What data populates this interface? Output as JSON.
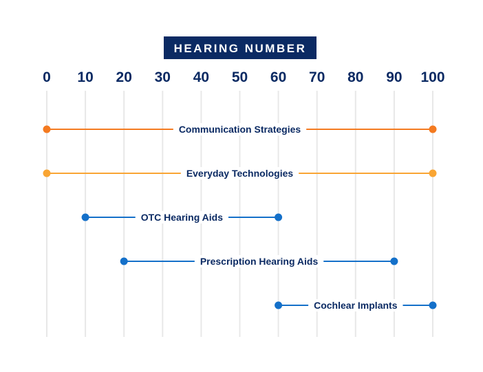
{
  "chart_data": {
    "type": "range",
    "title": "HEARING NUMBER",
    "xlim": [
      0,
      100
    ],
    "ticks": [
      0,
      10,
      20,
      30,
      40,
      50,
      60,
      70,
      80,
      90,
      100
    ],
    "grid": true,
    "series": [
      {
        "name": "Communication Strategies",
        "start": 0,
        "end": 100,
        "color": "#f47a20"
      },
      {
        "name": "Everyday Technologies",
        "start": 0,
        "end": 100,
        "color": "#f9a533"
      },
      {
        "name": "OTC Hearing Aids",
        "start": 10,
        "end": 60,
        "color": "#1470c9"
      },
      {
        "name": "Prescription Hearing Aids",
        "start": 20,
        "end": 90,
        "color": "#1470c9"
      },
      {
        "name": "Cochlear Implants",
        "start": 60,
        "end": 100,
        "color": "#1470c9"
      }
    ],
    "colors": {
      "title_bg": "#0b2a63",
      "text": "#0b2a63",
      "grid": "#e8e8e8"
    }
  }
}
